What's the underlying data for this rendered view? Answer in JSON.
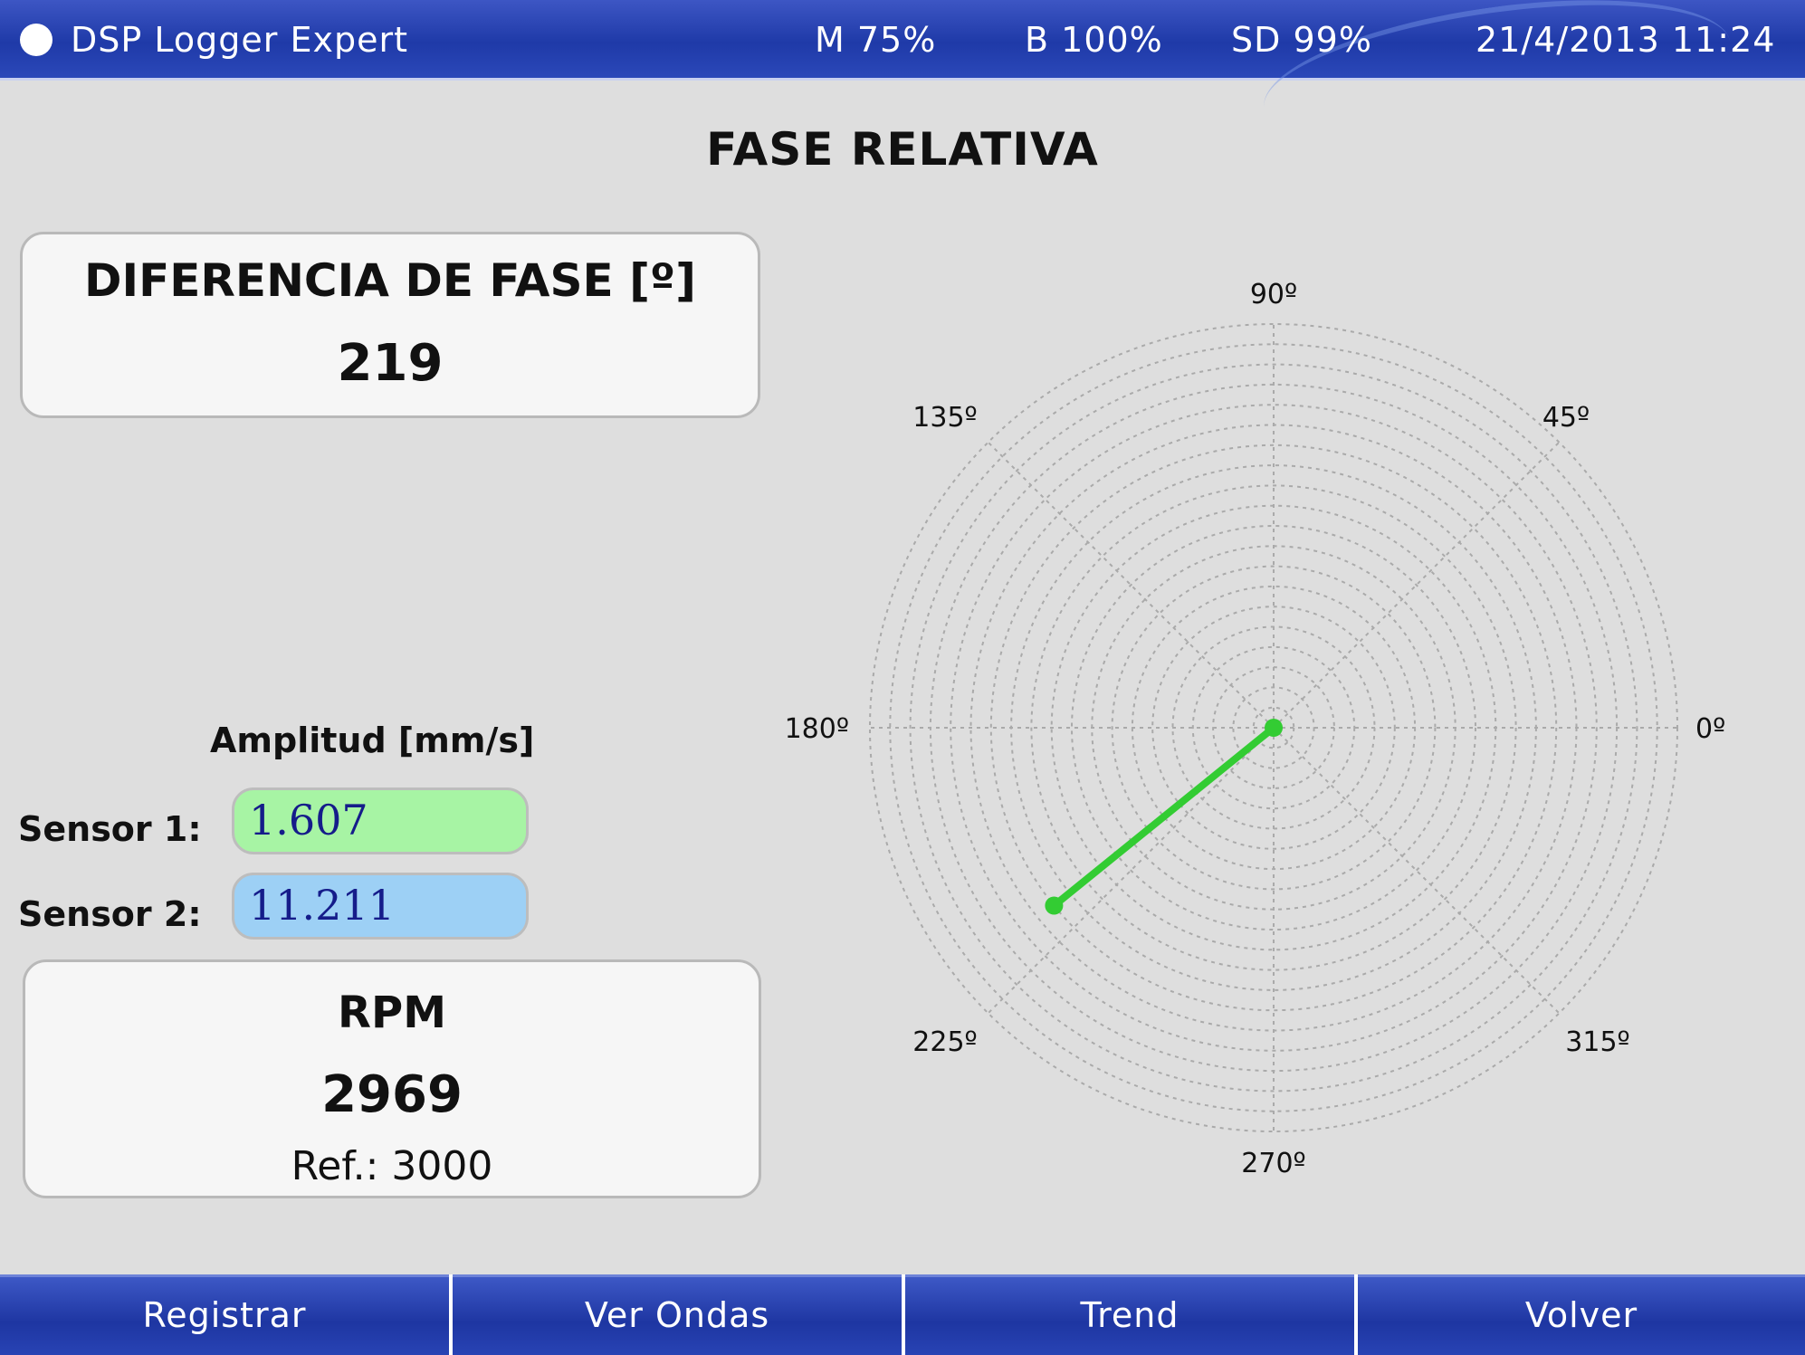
{
  "status_bar": {
    "app_title": "DSP Logger Expert",
    "memory": "M 75%",
    "battery": "B 100%",
    "sd_card": "SD 99%",
    "datetime": "21/4/2013 11:24",
    "indicator_color": "#ffffff"
  },
  "page_title": "FASE RELATIVA",
  "phase_difference": {
    "label": "DIFERENCIA DE FASE [º]",
    "value": "219"
  },
  "amplitude": {
    "title": "Amplitud [mm/s]",
    "sensor1_label": "Sensor 1:",
    "sensor1_value": "1.607",
    "sensor1_color": "#a7f4a4",
    "sensor2_label": "Sensor 2:",
    "sensor2_value": "11.211",
    "sensor2_color": "#9dd0f5"
  },
  "rpm": {
    "label": "RPM",
    "value": "2969",
    "reference": "Ref.: 3000"
  },
  "polar_plot": {
    "angle_labels": [
      "0º",
      "45º",
      "90º",
      "135º",
      "180º",
      "225º",
      "270º",
      "315º"
    ],
    "phase_deg": 219,
    "vector_color": "#33cc33",
    "grid_rings": 20
  },
  "buttons": {
    "registrar": "Registrar",
    "ver_ondas": "Ver Ondas",
    "trend": "Trend",
    "volver": "Volver"
  }
}
